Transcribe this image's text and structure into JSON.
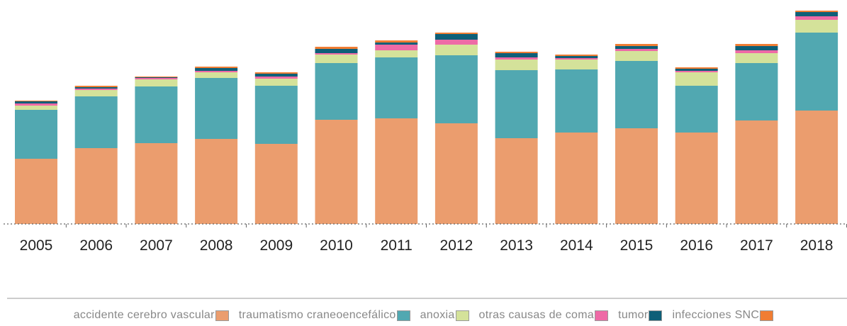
{
  "chart_data": {
    "type": "stacked_bar",
    "categories": [
      "2005",
      "2006",
      "2007",
      "2008",
      "2009",
      "2010",
      "2011",
      "2012",
      "2013",
      "2014",
      "2015",
      "2016",
      "2017",
      "2018"
    ],
    "ylim": [
      0,
      305
    ],
    "series": [
      {
        "name": "accidente cerebro vascular",
        "color": "#eb9d6e",
        "values": [
          92,
          107,
          114,
          120,
          113,
          147,
          149,
          142,
          121,
          129,
          135,
          129,
          146,
          160
        ]
      },
      {
        "name": "traumatismo craneoencefálico",
        "color": "#51a8b1",
        "values": [
          69,
          73,
          80,
          86,
          82,
          80,
          86,
          96,
          96,
          89,
          95,
          66,
          81,
          110
        ]
      },
      {
        "name": "anoxia",
        "color": "#d4e29a",
        "values": [
          6,
          9,
          10,
          8,
          10,
          12,
          10,
          15,
          15,
          14,
          14,
          19,
          14,
          18
        ]
      },
      {
        "name": "otras causas de coma",
        "color": "#ee6aa6",
        "values": [
          3,
          2,
          2,
          2,
          3,
          2,
          8,
          7,
          3,
          2,
          3,
          2,
          4,
          5
        ]
      },
      {
        "name": "tumor",
        "color": "#0e5f78",
        "values": [
          3,
          2,
          1,
          4,
          4,
          6,
          3,
          8,
          6,
          3,
          4,
          3,
          6,
          6
        ]
      },
      {
        "name": "infecciones SNC",
        "color": "#f07d33",
        "values": [
          1,
          2,
          1,
          2,
          2,
          3,
          3,
          2,
          2,
          2,
          3,
          2,
          3,
          2
        ]
      }
    ]
  }
}
